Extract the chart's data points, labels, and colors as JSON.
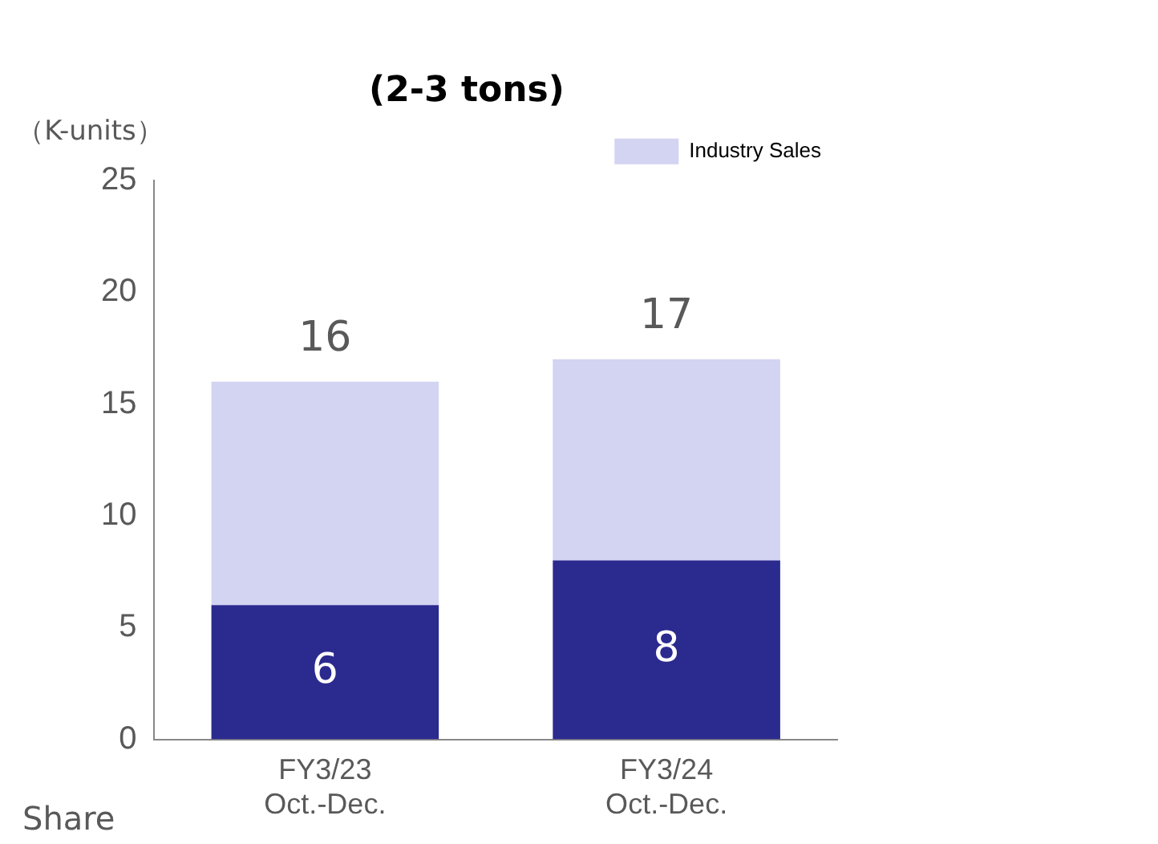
{
  "chart_data": {
    "type": "bar",
    "title": "(2-3 tons)",
    "ylabel": "（K-units）",
    "categories": [
      "FY3/23\nOct.-Dec.",
      "FY3/24\nOct.-Dec."
    ],
    "stacked": true,
    "series": [
      {
        "color": "#2b2a8f",
        "values": [
          6,
          8
        ],
        "value_labels": [
          "6",
          "8"
        ]
      },
      {
        "name": "Industry Sales",
        "color": "#d3d3f2",
        "values": [
          10,
          9
        ]
      }
    ],
    "totals": [
      "16",
      "17"
    ],
    "ylim": [
      0,
      25
    ],
    "yticks": [
      0,
      5,
      10,
      15,
      20,
      25
    ],
    "grid": false,
    "legend": "top right",
    "annotations": [
      "Share"
    ]
  }
}
